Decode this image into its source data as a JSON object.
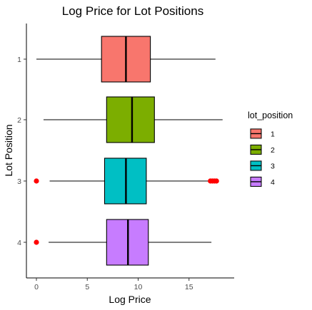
{
  "chart_data": {
    "type": "boxplot",
    "orientation": "horizontal",
    "title": "Log Price for Lot Positions",
    "xlabel": "Log Price",
    "ylabel": "Lot Position",
    "xlim": [
      -0.9,
      18.5
    ],
    "xticks": [
      0,
      5,
      10,
      15
    ],
    "categories": [
      "1",
      "2",
      "3",
      "4"
    ],
    "grid": false,
    "legend": {
      "title": "lot_position",
      "placement": "right",
      "entries": [
        "1",
        "2",
        "3",
        "4"
      ]
    },
    "series": [
      {
        "name": "1",
        "color": "#F8766D",
        "whisker_low": 0.0,
        "q1": 6.4,
        "median": 8.8,
        "q3": 11.2,
        "whisker_high": 17.6,
        "outliers": []
      },
      {
        "name": "2",
        "color": "#7CAE00",
        "whisker_low": 0.7,
        "q1": 6.9,
        "median": 9.4,
        "q3": 11.6,
        "whisker_high": 18.3,
        "outliers": []
      },
      {
        "name": "3",
        "color": "#00BFC4",
        "whisker_low": 1.3,
        "q1": 6.7,
        "median": 8.8,
        "q3": 10.8,
        "whisker_high": 16.9,
        "outliers": [
          0.0,
          17.1,
          17.3,
          17.5,
          17.7
        ]
      },
      {
        "name": "4",
        "color": "#C77CFF",
        "whisker_low": 1.2,
        "q1": 6.9,
        "median": 9.0,
        "q3": 11.0,
        "whisker_high": 17.2,
        "outliers": [
          0.0
        ]
      }
    ],
    "outlier_color": "#FF0000"
  }
}
